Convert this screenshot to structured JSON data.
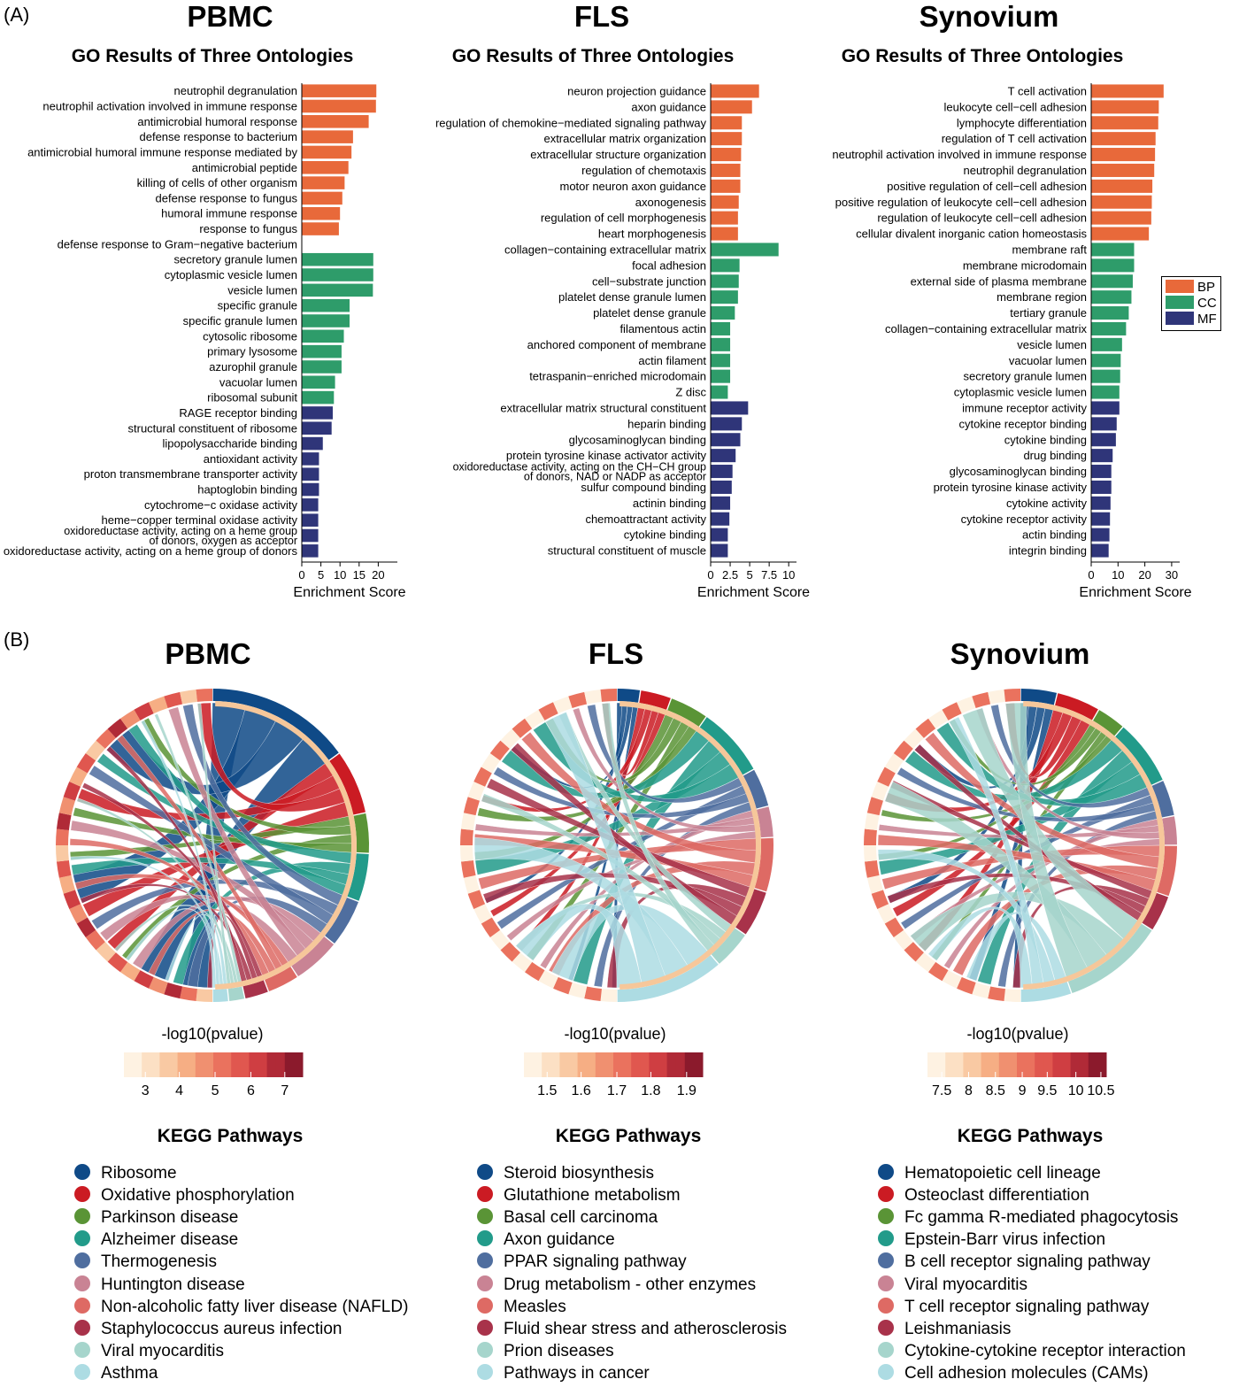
{
  "panel_a_label": "(A)",
  "panel_b_label": "(B)",
  "colors": {
    "BP": "#E8693A",
    "CC": "#2E9C6A",
    "MF": "#2F3579"
  },
  "go_legend": [
    "BP",
    "CC",
    "MF"
  ],
  "chart_data": [
    {
      "type": "bar",
      "orientation": "horizontal",
      "title": "PBMC",
      "subtitle": "GO Results of Three Ontologies",
      "xlabel": "Enrichment Score",
      "xlim": [
        0,
        25
      ],
      "xticks": [
        0,
        5,
        10,
        15,
        20
      ],
      "categories": [
        "neutrophil degranulation",
        "neutrophil activation involved in immune response",
        "antimicrobial humoral response",
        "defense response to bacterium",
        "antimicrobial humoral immune response mediated by",
        "antimicrobial peptide",
        "killing of cells of other organism",
        "defense response to fungus",
        "humoral immune response",
        "response to fungus",
        "defense response to Gram−negative bacterium",
        "secretory granule lumen",
        "cytoplasmic vesicle lumen",
        "vesicle lumen",
        "specific granule",
        "specific granule lumen",
        "cytosolic ribosome",
        "primary lysosome",
        "azurophil granule",
        "vacuolar lumen",
        "ribosomal subunit",
        "RAGE receptor binding",
        "structural constituent of ribosome",
        "lipopolysaccharide binding",
        "antioxidant activity",
        "proton transmembrane transporter activity",
        "haptoglobin binding",
        "cytochrome−c oxidase activity",
        "heme−copper terminal oxidase activity",
        "oxidoreductase activity, acting on a heme group of donors, oxygen as acceptor",
        "oxidoreductase activity, acting on a heme group of donors"
      ],
      "values": [
        19.5,
        19.4,
        17.5,
        13.4,
        13.0,
        12.2,
        11.2,
        10.6,
        10.0,
        9.7,
        0,
        18.7,
        18.7,
        18.6,
        12.5,
        12.5,
        11.0,
        10.4,
        10.4,
        8.7,
        8.4,
        8.1,
        7.8,
        5.5,
        4.5,
        4.5,
        4.5,
        4.3,
        4.3,
        4.3,
        4.3
      ],
      "groups": [
        "BP",
        "BP",
        "BP",
        "BP",
        "BP",
        "BP",
        "BP",
        "BP",
        "BP",
        "BP",
        "BP",
        "CC",
        "CC",
        "CC",
        "CC",
        "CC",
        "CC",
        "CC",
        "CC",
        "CC",
        "CC",
        "MF",
        "MF",
        "MF",
        "MF",
        "MF",
        "MF",
        "MF",
        "MF",
        "MF",
        "MF"
      ]
    },
    {
      "type": "bar",
      "orientation": "horizontal",
      "title": "FLS",
      "subtitle": "GO Results of Three Ontologies",
      "xlabel": "Enrichment Score",
      "xlim": [
        0,
        11
      ],
      "xticks": [
        "0",
        "2.5",
        "5",
        "7.5",
        "10"
      ],
      "categories": [
        "neuron projection guidance",
        "axon guidance",
        "regulation of chemokine−mediated signaling pathway",
        "extracellular matrix organization",
        "extracellular structure organization",
        "regulation of chemotaxis",
        "motor neuron axon guidance",
        "axonogenesis",
        "regulation of cell morphogenesis",
        "heart morphogenesis",
        "collagen−containing extracellular matrix",
        "focal adhesion",
        "cell−substrate junction",
        "platelet dense granule lumen",
        "platelet dense granule",
        "filamentous actin",
        "anchored component of membrane",
        "actin filament",
        "tetraspanin−enriched microdomain",
        "Z disc",
        "extracellular matrix structural constituent",
        "heparin binding",
        "glycosaminoglycan binding",
        "protein tyrosine kinase activator activity",
        "oxidoreductase activity, acting on the CH−CH group of donors, NAD or NADP as acceptor",
        "sulfur compound binding",
        "actinin binding",
        "chemoattractant activity",
        "cytokine binding",
        "structural constituent of muscle"
      ],
      "values": [
        6.2,
        5.3,
        4.0,
        4.0,
        3.9,
        3.8,
        3.8,
        3.6,
        3.5,
        3.5,
        8.7,
        3.7,
        3.6,
        3.5,
        3.1,
        2.5,
        2.5,
        2.5,
        2.5,
        2.2,
        4.8,
        4.0,
        3.8,
        3.2,
        2.8,
        2.7,
        2.5,
        2.4,
        2.2,
        2.2
      ],
      "groups": [
        "BP",
        "BP",
        "BP",
        "BP",
        "BP",
        "BP",
        "BP",
        "BP",
        "BP",
        "BP",
        "CC",
        "CC",
        "CC",
        "CC",
        "CC",
        "CC",
        "CC",
        "CC",
        "CC",
        "CC",
        "MF",
        "MF",
        "MF",
        "MF",
        "MF",
        "MF",
        "MF",
        "MF",
        "MF",
        "MF"
      ]
    },
    {
      "type": "bar",
      "orientation": "horizontal",
      "title": "Synovium",
      "subtitle": "GO Results of Three Ontologies",
      "xlabel": "Enrichment Score",
      "xlim": [
        0,
        33
      ],
      "xticks": [
        0,
        10,
        20,
        30
      ],
      "categories": [
        "T cell activation",
        "leukocyte cell−cell adhesion",
        "lymphocyte differentiation",
        "regulation of T cell activation",
        "neutrophil activation involved in immune response",
        "neutrophil degranulation",
        "positive regulation of cell−cell adhesion",
        "positive regulation of leukocyte cell−cell adhesion",
        "regulation of leukocyte cell−cell adhesion",
        "cellular divalent inorganic cation homeostasis",
        "membrane raft",
        "membrane microdomain",
        "external side of plasma membrane",
        "membrane region",
        "tertiary granule",
        "collagen−containing extracellular matrix",
        "vesicle lumen",
        "vacuolar lumen",
        "secretory granule lumen",
        "cytoplasmic vesicle lumen",
        "immune receptor activity",
        "cytokine receptor binding",
        "cytokine binding",
        "drug binding",
        "glycosaminoglycan binding",
        "protein tyrosine kinase activity",
        "cytokine activity",
        "cytokine receptor activity",
        "actin binding",
        "integrin binding"
      ],
      "values": [
        27.0,
        25.2,
        25.0,
        24.0,
        23.8,
        23.5,
        22.8,
        22.6,
        22.4,
        21.5,
        16.0,
        16.0,
        15.5,
        15.0,
        14.0,
        13.0,
        11.5,
        11.0,
        10.8,
        10.5,
        10.5,
        9.5,
        9.2,
        8.0,
        7.5,
        7.5,
        7.2,
        7.0,
        6.8,
        6.5
      ],
      "groups": [
        "BP",
        "BP",
        "BP",
        "BP",
        "BP",
        "BP",
        "BP",
        "BP",
        "BP",
        "BP",
        "CC",
        "CC",
        "CC",
        "CC",
        "CC",
        "CC",
        "CC",
        "CC",
        "CC",
        "CC",
        "MF",
        "MF",
        "MF",
        "MF",
        "MF",
        "MF",
        "MF",
        "MF",
        "MF",
        "MF"
      ]
    }
  ],
  "chords": [
    {
      "title": "PBMC",
      "colorbar_title": "-log10(pvalue)",
      "colorbar_ticks": [
        "3",
        "4",
        "5",
        "6",
        "7"
      ],
      "legend_title": "KEGG Pathways",
      "pathways": [
        "Ribosome",
        "Oxidative phosphorylation",
        "Parkinson disease",
        "Alzheimer disease",
        "Thermogenesis",
        "Huntington disease",
        "Non-alcoholic fatty liver disease (NAFLD)",
        "Staphylococcus aureus infection",
        "Viral myocarditis",
        "Asthma"
      ],
      "weights": [
        18,
        8,
        5,
        6,
        6,
        6,
        4,
        3,
        2,
        2
      ]
    },
    {
      "title": "FLS",
      "colorbar_title": "-log10(pvalue)",
      "colorbar_ticks": [
        "1.5",
        "1.6",
        "1.7",
        "1.8",
        "1.9"
      ],
      "legend_title": "KEGG Pathways",
      "pathways": [
        "Steroid biosynthesis",
        "Glutathione metabolism",
        "Basal cell carcinoma",
        "Axon guidance",
        "PPAR signaling pathway",
        "Drug metabolism - other enzymes",
        "Measles",
        "Fluid shear stress and atherosclerosis",
        "Prion diseases",
        "Pathways in cancer"
      ],
      "weights": [
        3,
        4,
        5,
        9,
        5,
        4,
        7,
        6,
        5,
        14
      ]
    },
    {
      "title": "Synovium",
      "colorbar_title": "-log10(pvalue)",
      "colorbar_ticks": [
        "7.5",
        "8",
        "8.5",
        "9",
        "9.5",
        "10",
        "10.5"
      ],
      "legend_title": "KEGG Pathways",
      "pathways": [
        "Hematopoietic cell lineage",
        "Osteoclast differentiation",
        "Fc gamma R-mediated phagocytosis",
        "Epstein-Barr virus infection",
        "B cell receptor signaling pathway",
        "Viral myocarditis",
        "T cell receptor signaling pathway",
        "Leishmaniasis",
        "Cytokine-cytokine receptor interaction",
        "Cell adhesion molecules (CAMs)"
      ],
      "weights": [
        5,
        6,
        4,
        9,
        5,
        4,
        7,
        5,
        14,
        7
      ]
    }
  ],
  "kegg_colors": [
    "#0F4A87",
    "#CB1B23",
    "#5A9436",
    "#229B8A",
    "#4F6E9F",
    "#C98394",
    "#DE6A64",
    "#A8324A",
    "#A6D5CC",
    "#ADDCE3"
  ]
}
